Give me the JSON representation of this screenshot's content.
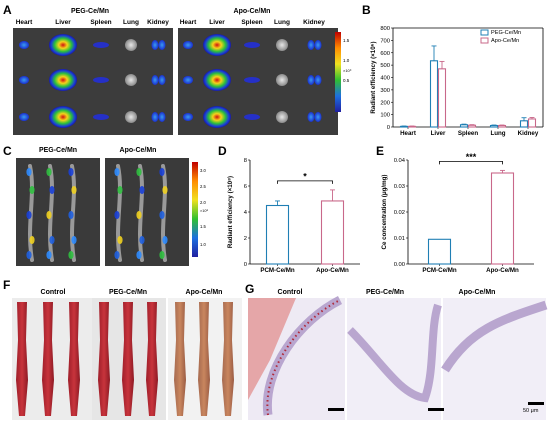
{
  "panels": {
    "A": "A",
    "B": "B",
    "C": "C",
    "D": "D",
    "E": "E",
    "F": "F",
    "G": "G"
  },
  "panel_a": {
    "groups": [
      "PEG-Ce/Mn",
      "Apo-Ce/Mn"
    ],
    "organs": [
      "Heart",
      "Liver",
      "Spleen",
      "Lung",
      "Kidney"
    ],
    "colorbar_ticks": [
      "1.5",
      "1.0",
      "0.5"
    ],
    "colorbar_unit": "×10⁹"
  },
  "panel_c": {
    "groups": [
      "PEG-Ce/Mn",
      "Apo-Ce/Mn"
    ],
    "colorbar_ticks": [
      "3.0",
      "2.5",
      "2.0",
      "1.5",
      "1.0"
    ],
    "colorbar_unit": "×10⁸"
  },
  "panel_f": {
    "groups": [
      "Control",
      "PEG-Ce/Mn",
      "Apo-Ce/Mn"
    ]
  },
  "panel_g": {
    "groups": [
      "Control",
      "PEG-Ce/Mn",
      "Apo-Ce/Mn"
    ],
    "scale_bar": "50 μm"
  },
  "colors": {
    "peg": "#1f7fb4",
    "apo": "#c9688a",
    "sig": "#000000"
  },
  "chart_data": [
    {
      "id": "B",
      "type": "bar",
      "categories": [
        "Heart",
        "Liver",
        "Spleen",
        "Lung",
        "Kidney"
      ],
      "ylabel": "Radiant efficiency (×10⁶)",
      "ylim": [
        0,
        800
      ],
      "yticks": [
        0,
        100,
        200,
        300,
        400,
        500,
        600,
        700,
        800
      ],
      "legend_position": "top-right",
      "series": [
        {
          "name": "PEG-Ce/Mn",
          "values": [
            5,
            535,
            18,
            12,
            50
          ],
          "errors": [
            3,
            120,
            5,
            4,
            25
          ]
        },
        {
          "name": "Apo-Ce/Mn",
          "values": [
            5,
            470,
            14,
            12,
            65
          ],
          "errors": [
            3,
            60,
            5,
            4,
            12
          ]
        }
      ]
    },
    {
      "id": "D",
      "type": "bar",
      "categories": [
        "PCM-Ce/Mn",
        "Apo-Ce/Mn"
      ],
      "ylabel": "Radiant efficiency (×10⁸)",
      "ylim": [
        0,
        8
      ],
      "yticks": [
        0,
        2,
        4,
        6,
        8
      ],
      "values": [
        4.5,
        4.85
      ],
      "errors": [
        0.35,
        0.85
      ],
      "significance": "*"
    },
    {
      "id": "E",
      "type": "bar",
      "categories": [
        "PCM-Ce/Mn",
        "Apo-Ce/Mn"
      ],
      "ylabel": "Ce concentration (μg/mg)",
      "ylim": [
        0,
        0.04
      ],
      "yticks": [
        "0.00",
        "0.01",
        "0.02",
        "0.03",
        "0.04"
      ],
      "values": [
        0.0095,
        0.035
      ],
      "errors": [
        0,
        0.001
      ],
      "significance": "***"
    }
  ]
}
